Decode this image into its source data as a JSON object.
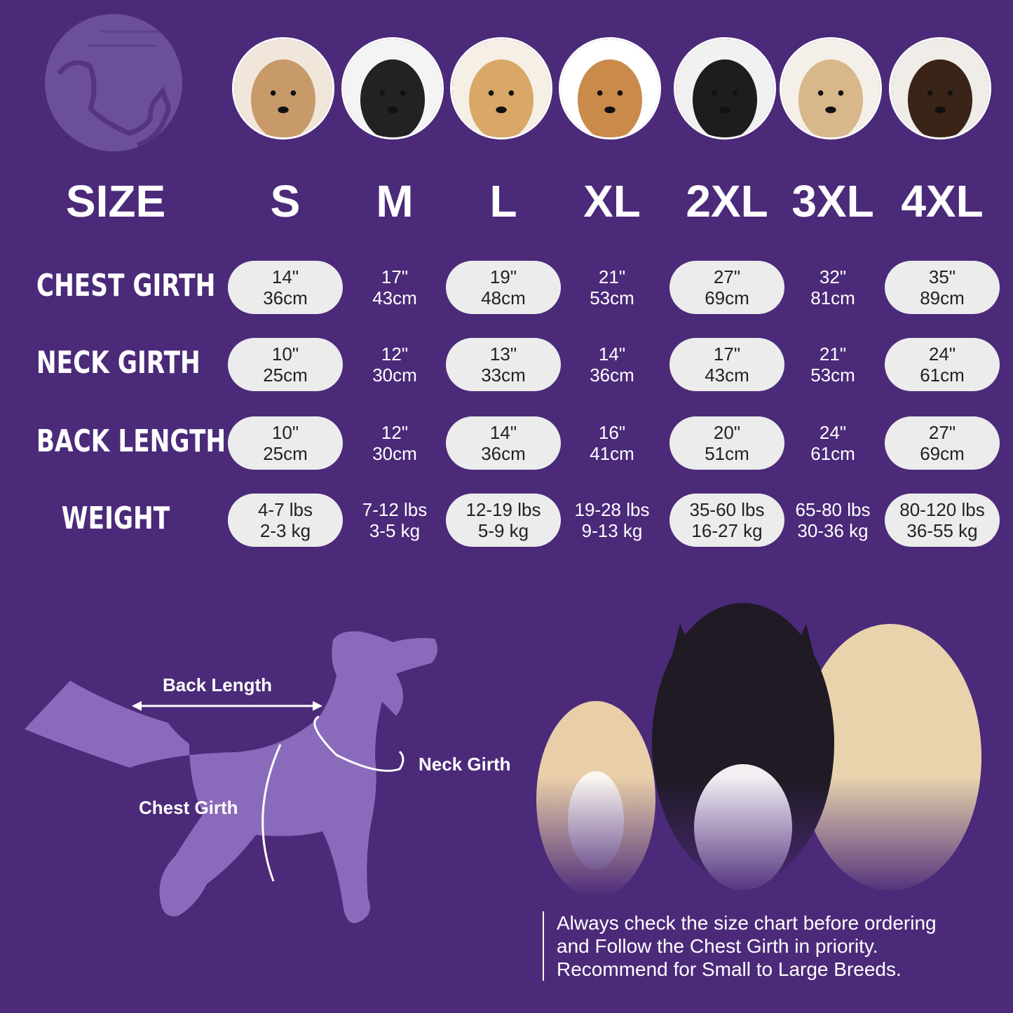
{
  "header": {
    "size_label": "SIZE",
    "sizes": [
      "S",
      "M",
      "L",
      "XL",
      "2XL",
      "3XL",
      "4XL"
    ]
  },
  "breed_photos": [
    "shih-tzu",
    "boston-terrier",
    "cocker-spaniel",
    "beagle",
    "border-collie",
    "labrador",
    "doberman"
  ],
  "rows": [
    {
      "label": "CHEST GIRTH",
      "values": [
        [
          "14\"",
          "36cm"
        ],
        [
          "17\"",
          "43cm"
        ],
        [
          "19\"",
          "48cm"
        ],
        [
          "21\"",
          "53cm"
        ],
        [
          "27\"",
          "69cm"
        ],
        [
          "32\"",
          "81cm"
        ],
        [
          "35\"",
          "89cm"
        ]
      ]
    },
    {
      "label": "NECK GIRTH",
      "values": [
        [
          "10\"",
          "25cm"
        ],
        [
          "12\"",
          "30cm"
        ],
        [
          "13\"",
          "33cm"
        ],
        [
          "14\"",
          "36cm"
        ],
        [
          "17\"",
          "43cm"
        ],
        [
          "21\"",
          "53cm"
        ],
        [
          "24\"",
          "61cm"
        ]
      ]
    },
    {
      "label": "BACK LENGTH",
      "values": [
        [
          "10\"",
          "25cm"
        ],
        [
          "12\"",
          "30cm"
        ],
        [
          "14\"",
          "36cm"
        ],
        [
          "16\"",
          "41cm"
        ],
        [
          "20\"",
          "51cm"
        ],
        [
          "24\"",
          "61cm"
        ],
        [
          "27\"",
          "69cm"
        ]
      ]
    },
    {
      "label": "WEIGHT",
      "values": [
        [
          "4-7 lbs",
          "2-3 kg"
        ],
        [
          "7-12 lbs",
          "3-5 kg"
        ],
        [
          "12-19 lbs",
          "5-9 kg"
        ],
        [
          "19-28 lbs",
          "9-13 kg"
        ],
        [
          "35-60 lbs",
          "16-27 kg"
        ],
        [
          "65-80 lbs",
          "30-36 kg"
        ],
        [
          "80-120 lbs",
          "36-55 kg"
        ]
      ]
    }
  ],
  "diagram": {
    "back_length": "Back Length",
    "neck_girth": "Neck Girth",
    "chest_girth": "Chest Girth"
  },
  "note": [
    "Always check the size chart before ordering",
    "and Follow the Chest Girth in priority.",
    "Recommend for Small to Large Breeds."
  ],
  "colors": {
    "background": "#4b2a79",
    "silhouette": "#8a6bbb",
    "pill": "#ececec"
  }
}
